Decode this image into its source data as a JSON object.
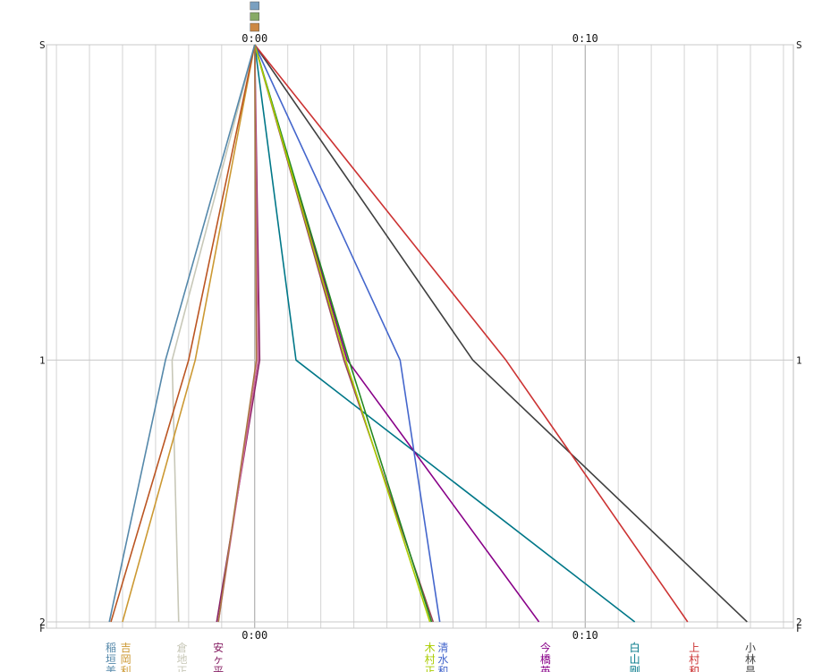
{
  "chart_data": {
    "type": "line",
    "x_ticks": [
      {
        "label": "0:00",
        "value": 0
      },
      {
        "label": "0:10",
        "value": 10
      }
    ],
    "xlim": [
      -6.3,
      16.3
    ],
    "y_ticks": [
      {
        "label": "S",
        "value": 0
      },
      {
        "label": "1",
        "value": 1
      },
      {
        "label": "2",
        "value": 1.83
      },
      {
        "label": "F",
        "value": 1.85
      }
    ],
    "ylim": [
      0,
      1.85
    ],
    "grid": true,
    "series": [
      {
        "name": "小林",
        "color": "#404040",
        "points": [
          [
            0,
            0
          ],
          [
            6.6,
            1
          ],
          [
            14.9,
            1.83
          ]
        ]
      },
      {
        "name": "上村",
        "color": "#cc3333",
        "points": [
          [
            0,
            0
          ],
          [
            7.6,
            1
          ],
          [
            13.1,
            1.83
          ]
        ]
      },
      {
        "name": "白山",
        "color": "#007788",
        "points": [
          [
            0,
            0
          ],
          [
            1.25,
            1
          ],
          [
            11.5,
            1.83
          ]
        ]
      },
      {
        "name": "今橋",
        "color": "#880088",
        "points": [
          [
            0,
            0
          ],
          [
            2.8,
            1
          ],
          [
            8.6,
            1.83
          ]
        ]
      },
      {
        "name": "清水",
        "color": "#4466cc",
        "points": [
          [
            0,
            0
          ],
          [
            4.4,
            1
          ],
          [
            5.6,
            1.83
          ]
        ]
      },
      {
        "name": "",
        "color": "#994455",
        "points": [
          [
            0,
            0
          ],
          [
            2.7,
            1
          ],
          [
            5.4,
            1.83
          ]
        ]
      },
      {
        "name": "",
        "color": "#228822",
        "points": [
          [
            0,
            0
          ],
          [
            2.85,
            1
          ],
          [
            5.35,
            1.83
          ]
        ]
      },
      {
        "name": "",
        "color": "#aacc00",
        "points": [
          [
            0,
            0
          ],
          [
            2.75,
            1
          ],
          [
            5.3,
            1.83
          ]
        ]
      },
      {
        "name": "安ヶ",
        "color": "#882266",
        "points": [
          [
            0,
            0
          ],
          [
            0.15,
            1
          ],
          [
            -1.15,
            1.83
          ]
        ]
      },
      {
        "name": "",
        "color": "#cc6699",
        "points": [
          [
            0,
            0
          ],
          [
            0.1,
            1
          ],
          [
            -1.1,
            1.83
          ]
        ]
      },
      {
        "name": "",
        "color": "#aa7744",
        "points": [
          [
            0,
            0
          ],
          [
            0.05,
            1
          ],
          [
            -1.1,
            1.83
          ]
        ]
      },
      {
        "name": "倉地",
        "color": "#c8c8b8",
        "points": [
          [
            0,
            0
          ],
          [
            -2.5,
            1
          ],
          [
            -2.3,
            1.83
          ]
        ]
      },
      {
        "name": "吉岡",
        "color": "#cc9933",
        "points": [
          [
            0,
            0
          ],
          [
            -1.8,
            1
          ],
          [
            -4,
            1.83
          ]
        ]
      },
      {
        "name": "",
        "color": "#bb5522",
        "points": [
          [
            0,
            0
          ],
          [
            -2,
            1
          ],
          [
            -4.35,
            1.83
          ]
        ]
      },
      {
        "name": "稲垣",
        "color": "#5588aa",
        "points": [
          [
            0,
            0
          ],
          [
            -2.7,
            1
          ],
          [
            -4.4,
            1.83
          ]
        ]
      }
    ],
    "bottom_labels": [
      {
        "lines": [
          "稲",
          "垣",
          "美"
        ],
        "color": "#5588aa",
        "at": -4.35
      },
      {
        "lines": [
          "吉",
          "岡",
          "利"
        ],
        "color": "#cc9933",
        "at": -3.9
      },
      {
        "lines": [
          "倉",
          "地",
          "正"
        ],
        "color": "#c8c8b8",
        "at": -2.2
      },
      {
        "lines": [
          "安",
          "ヶ",
          "平"
        ],
        "color": "#882266",
        "at": -1.1
      },
      {
        "lines": [
          "木",
          "村",
          "正"
        ],
        "color": "#aacc00",
        "at": 5.3
      },
      {
        "lines": [
          "清",
          "水",
          "和"
        ],
        "color": "#4466cc",
        "at": 5.7
      },
      {
        "lines": [
          "今",
          "橋",
          "英"
        ],
        "color": "#880088",
        "at": 8.8
      },
      {
        "lines": [
          "白",
          "山",
          "剛"
        ],
        "color": "#007788",
        "at": 11.5
      },
      {
        "lines": [
          "上",
          "村",
          "和"
        ],
        "color": "#cc3333",
        "at": 13.3
      },
      {
        "lines": [
          "小",
          "林",
          "昌"
        ],
        "color": "#404040",
        "at": 15.0
      }
    ]
  }
}
